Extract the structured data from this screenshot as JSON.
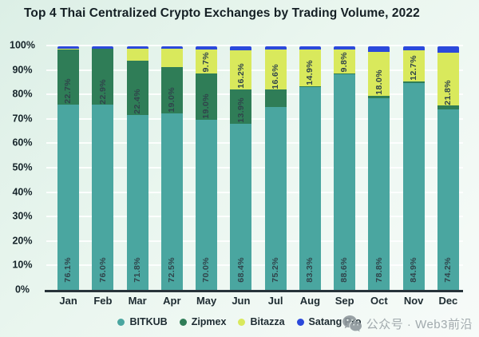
{
  "chart_data": {
    "type": "stacked-bar",
    "title": "Top 4 Thai Centralized Crypto Exchanges by Trading Volume, 2022",
    "categories": [
      "Jan",
      "Feb",
      "Mar",
      "Apr",
      "May",
      "Jun",
      "Jul",
      "Aug",
      "Sep",
      "Oct",
      "Nov",
      "Dec"
    ],
    "series": [
      {
        "name": "BITKUB",
        "color": "#4AA6A0",
        "values": [
          76.1,
          76.0,
          71.8,
          72.5,
          70.0,
          68.4,
          75.2,
          83.3,
          88.6,
          78.8,
          84.9,
          74.2
        ]
      },
      {
        "name": "Zipmex",
        "color": "#2F7D57",
        "values": [
          22.7,
          22.9,
          22.4,
          19.0,
          19.0,
          13.9,
          7.0,
          0.5,
          0.4,
          1.0,
          0.8,
          1.5
        ]
      },
      {
        "name": "Bitazza",
        "color": "#D9E95C",
        "values": [
          0.3,
          0.2,
          4.8,
          7.5,
          9.7,
          16.2,
          16.6,
          14.9,
          9.8,
          18.0,
          12.7,
          21.8
        ]
      },
      {
        "name": "Satang Pro",
        "color": "#2B49DB",
        "values": [
          0.9,
          0.9,
          1.0,
          1.0,
          1.3,
          1.5,
          1.2,
          1.3,
          1.2,
          2.2,
          1.6,
          2.5
        ]
      }
    ],
    "ylim": [
      0,
      100
    ],
    "y_tick_step": 10,
    "y_tick_suffix": "%",
    "grid": true,
    "legend_position": "bottom",
    "bar_label_min_value": 9,
    "bar_label_format": "one-decimal-percent"
  },
  "watermark": {
    "icon": "wechat-icon",
    "text": "公众号 · Web3前沿"
  }
}
